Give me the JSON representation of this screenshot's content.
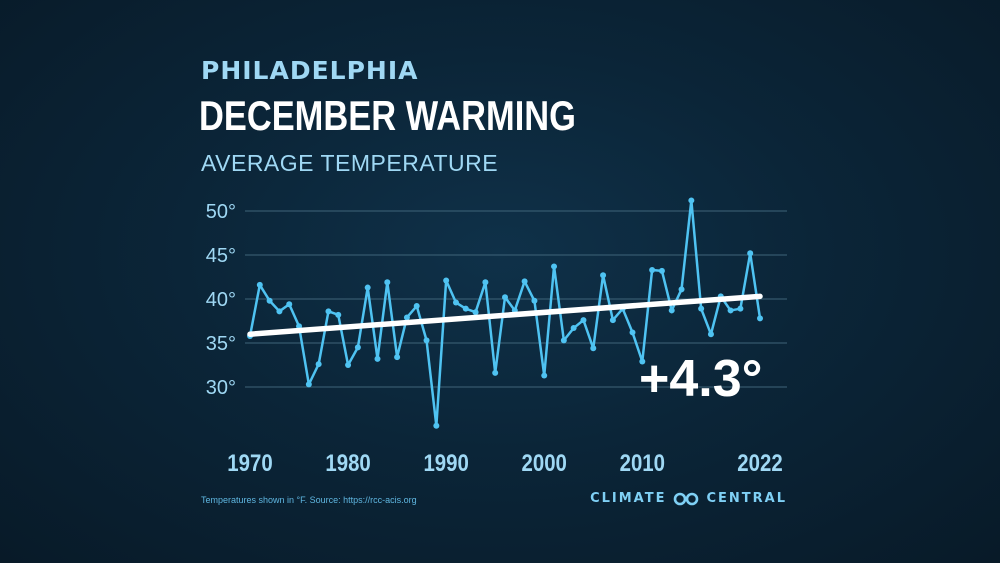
{
  "header": {
    "location": "PHILADELPHIA",
    "title": "DECEMBER WARMING",
    "subtitle": "AVERAGE TEMPERATURE"
  },
  "footer": {
    "note": "Temperatures shown in °F. Source: https://rcc-acis.org",
    "brand_left": "CLIMATE",
    "brand_right": "CENTRAL"
  },
  "colors": {
    "series": "#4fc3f2",
    "trend": "#ffffff",
    "grid": "#3f6479",
    "axis_text": "#9fd8f4"
  },
  "chart_data": {
    "type": "line",
    "title": "DECEMBER WARMING",
    "subtitle": "AVERAGE TEMPERATURE",
    "ylim": [
      25,
      52
    ],
    "y_ticks": [
      30,
      35,
      40,
      45,
      50
    ],
    "y_tick_labels": [
      "30°",
      "35°",
      "40°",
      "45°",
      "50°"
    ],
    "x_ticks": [
      1970,
      1980,
      1990,
      2000,
      2010,
      2022
    ],
    "x_tick_labels": [
      "1970",
      "1980",
      "1990",
      "2000",
      "2010",
      "2022"
    ],
    "xlim": [
      1970,
      2022
    ],
    "grid": true,
    "x": [
      1970,
      1971,
      1972,
      1973,
      1974,
      1975,
      1976,
      1977,
      1978,
      1979,
      1980,
      1981,
      1982,
      1983,
      1984,
      1985,
      1986,
      1987,
      1988,
      1989,
      1990,
      1991,
      1992,
      1993,
      1994,
      1995,
      1996,
      1997,
      1998,
      1999,
      2000,
      2001,
      2002,
      2003,
      2004,
      2005,
      2006,
      2007,
      2008,
      2009,
      2010,
      2011,
      2012,
      2013,
      2014,
      2015,
      2016,
      2017,
      2018,
      2019,
      2020,
      2021,
      2022
    ],
    "series": [
      {
        "values": [
          35.8,
          41.6,
          39.8,
          38.6,
          39.4,
          36.9,
          30.3,
          32.6,
          38.6,
          38.2,
          32.5,
          34.5,
          41.3,
          33.2,
          41.9,
          33.4,
          37.9,
          39.2,
          35.3,
          25.6,
          42.1,
          39.6,
          38.9,
          38.5,
          41.9,
          31.6,
          40.2,
          38.7,
          42.0,
          39.8,
          31.3,
          43.7,
          35.3,
          36.7,
          37.6,
          34.4,
          42.7,
          37.6,
          38.9,
          36.2,
          32.9,
          43.3,
          43.2,
          38.7,
          41.1,
          51.2,
          38.9,
          36.0,
          40.3,
          38.7,
          38.9,
          45.2,
          37.8
        ]
      }
    ],
    "trend": {
      "start": [
        1970,
        36.0
      ],
      "end": [
        2022,
        40.3
      ]
    },
    "annotation": "+4.3°"
  }
}
